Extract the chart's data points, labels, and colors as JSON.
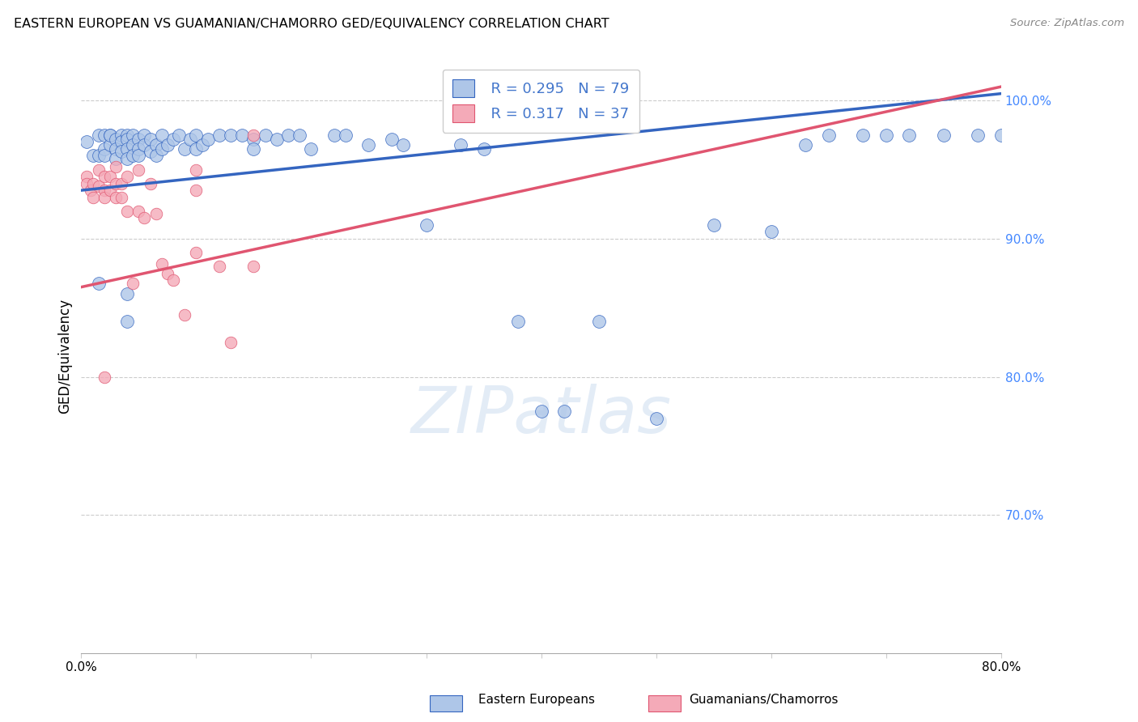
{
  "title": "EASTERN EUROPEAN VS GUAMANIAN/CHAMORRO GED/EQUIVALENCY CORRELATION CHART",
  "source": "Source: ZipAtlas.com",
  "ylabel": "GED/Equivalency",
  "ytick_labels": [
    "100.0%",
    "90.0%",
    "80.0%",
    "70.0%"
  ],
  "ytick_values": [
    1.0,
    0.9,
    0.8,
    0.7
  ],
  "xlim": [
    0.0,
    0.8
  ],
  "ylim": [
    0.6,
    1.03
  ],
  "blue_R": 0.295,
  "blue_N": 79,
  "pink_R": 0.317,
  "pink_N": 37,
  "blue_color": "#aec6e8",
  "pink_color": "#f4aab8",
  "blue_line_color": "#3465c0",
  "pink_line_color": "#e05570",
  "legend_blue_label": "Eastern Europeans",
  "legend_pink_label": "Guamanians/Chamorros",
  "blue_line_x": [
    0.0,
    0.8
  ],
  "blue_line_y": [
    0.935,
    1.005
  ],
  "pink_line_x": [
    0.0,
    0.8
  ],
  "pink_line_y": [
    0.865,
    1.01
  ],
  "blue_scatter_x": [
    0.005,
    0.01,
    0.015,
    0.015,
    0.02,
    0.02,
    0.02,
    0.025,
    0.025,
    0.025,
    0.03,
    0.03,
    0.03,
    0.035,
    0.035,
    0.035,
    0.04,
    0.04,
    0.04,
    0.04,
    0.045,
    0.045,
    0.045,
    0.05,
    0.05,
    0.05,
    0.055,
    0.055,
    0.06,
    0.06,
    0.065,
    0.065,
    0.07,
    0.07,
    0.075,
    0.08,
    0.085,
    0.09,
    0.095,
    0.1,
    0.1,
    0.105,
    0.11,
    0.12,
    0.13,
    0.14,
    0.15,
    0.15,
    0.16,
    0.17,
    0.18,
    0.19,
    0.2,
    0.22,
    0.23,
    0.25,
    0.27,
    0.28,
    0.3,
    0.33,
    0.35,
    0.38,
    0.4,
    0.42,
    0.45,
    0.5,
    0.55,
    0.6,
    0.63,
    0.65,
    0.68,
    0.7,
    0.72,
    0.75,
    0.78,
    0.8,
    0.04,
    0.04,
    0.015
  ],
  "blue_scatter_y": [
    0.97,
    0.96,
    0.975,
    0.96,
    0.975,
    0.965,
    0.96,
    0.975,
    0.968,
    0.975,
    0.972,
    0.965,
    0.958,
    0.975,
    0.97,
    0.963,
    0.975,
    0.972,
    0.965,
    0.958,
    0.975,
    0.968,
    0.96,
    0.972,
    0.965,
    0.96,
    0.975,
    0.968,
    0.972,
    0.963,
    0.968,
    0.96,
    0.975,
    0.965,
    0.968,
    0.972,
    0.975,
    0.965,
    0.972,
    0.975,
    0.965,
    0.968,
    0.972,
    0.975,
    0.975,
    0.975,
    0.972,
    0.965,
    0.975,
    0.972,
    0.975,
    0.975,
    0.965,
    0.975,
    0.975,
    0.968,
    0.972,
    0.968,
    0.91,
    0.968,
    0.965,
    0.84,
    0.775,
    0.775,
    0.84,
    0.77,
    0.91,
    0.905,
    0.968,
    0.975,
    0.975,
    0.975,
    0.975,
    0.975,
    0.975,
    0.975,
    0.86,
    0.84,
    0.868
  ],
  "pink_scatter_x": [
    0.005,
    0.005,
    0.008,
    0.01,
    0.01,
    0.015,
    0.015,
    0.02,
    0.02,
    0.02,
    0.025,
    0.025,
    0.03,
    0.03,
    0.03,
    0.035,
    0.035,
    0.04,
    0.04,
    0.045,
    0.05,
    0.05,
    0.055,
    0.06,
    0.065,
    0.07,
    0.075,
    0.08,
    0.09,
    0.1,
    0.1,
    0.12,
    0.13,
    0.15,
    0.1,
    0.15,
    0.02
  ],
  "pink_scatter_y": [
    0.945,
    0.94,
    0.935,
    0.94,
    0.93,
    0.95,
    0.938,
    0.945,
    0.935,
    0.93,
    0.945,
    0.935,
    0.952,
    0.94,
    0.93,
    0.94,
    0.93,
    0.945,
    0.92,
    0.868,
    0.95,
    0.92,
    0.915,
    0.94,
    0.918,
    0.882,
    0.875,
    0.87,
    0.845,
    0.95,
    0.935,
    0.88,
    0.825,
    0.975,
    0.89,
    0.88,
    0.8
  ],
  "blue_marker_size": 130,
  "pink_marker_size": 110
}
